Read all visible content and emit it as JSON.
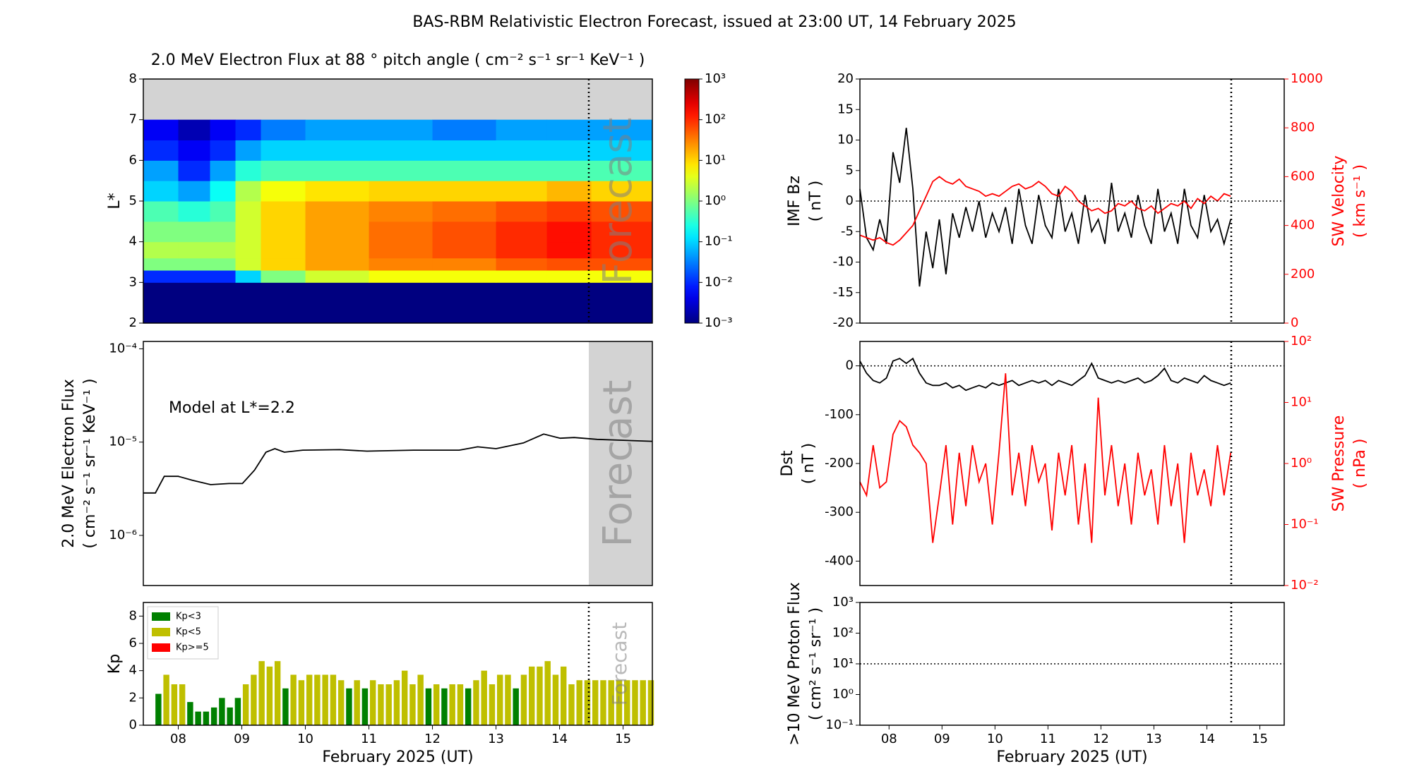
{
  "title": "BAS-RBM Relativistic Electron Forecast, issued at 23:00 UT, 14 February 2025",
  "chart_data": [
    {
      "type": "heatmap",
      "title": "2.0 MeV Electron Flux at 88 ° pitch angle ( cm⁻² s⁻¹ sr⁻¹ KeV⁻¹ )",
      "y_label": [
        "L*"
      ],
      "x_edges": [
        7.95,
        8.5,
        9.0,
        9.4,
        9.8,
        10.5,
        11.5,
        12.5,
        13.5,
        14.3,
        15.0,
        15.96
      ],
      "y_edges": [
        2,
        3,
        3.3,
        3.6,
        4,
        4.5,
        5,
        5.5,
        6,
        6.5,
        7
      ],
      "values": [
        [
          0.001,
          0.001,
          0.001,
          0.001,
          0.001,
          0.001,
          0.001,
          0.001,
          0.001,
          0.001,
          0.001
        ],
        [
          0.01,
          0.01,
          0.01,
          0.1,
          1,
          3,
          5,
          5,
          5,
          5,
          5
        ],
        [
          1,
          1,
          1,
          3,
          10,
          20,
          30,
          30,
          50,
          60,
          60
        ],
        [
          2,
          2,
          2,
          3,
          10,
          20,
          40,
          60,
          100,
          150,
          100
        ],
        [
          1,
          1,
          1,
          3,
          10,
          20,
          40,
          60,
          100,
          150,
          100
        ],
        [
          0.5,
          0.3,
          0.5,
          3,
          10,
          20,
          30,
          40,
          60,
          80,
          60
        ],
        [
          0.1,
          0.05,
          0.2,
          2,
          5,
          8,
          10,
          10,
          10,
          15,
          10
        ],
        [
          0.05,
          0.01,
          0.05,
          0.3,
          0.5,
          0.5,
          0.5,
          0.5,
          0.5,
          0.5,
          0.5
        ],
        [
          0.01,
          0.005,
          0.01,
          0.05,
          0.1,
          0.1,
          0.1,
          0.1,
          0.1,
          0.1,
          0.1
        ],
        [
          0.005,
          0.002,
          0.005,
          0.01,
          0.03,
          0.05,
          0.05,
          0.03,
          0.05,
          0.05,
          0.05
        ]
      ],
      "xlim": [
        7.95,
        15.96
      ],
      "ylim": [
        2,
        8
      ],
      "yticks": [
        2,
        3,
        4,
        5,
        6,
        7,
        8
      ],
      "colormap": "jet",
      "zlim": [
        0.001,
        1000
      ],
      "zticks": [
        {
          "value": 0.001,
          "label": "10⁻³"
        },
        {
          "value": 0.01,
          "label": "10⁻²"
        },
        {
          "value": 0.1,
          "label": "10⁻¹"
        },
        {
          "value": 1,
          "label": "10⁰"
        },
        {
          "value": 10,
          "label": "10¹"
        },
        {
          "value": 100,
          "label": "10²"
        },
        {
          "value": 1000,
          "label": "10³"
        }
      ],
      "no_data_color": "#d3d3d3",
      "forecast_time": 14.96,
      "forecast_marker": "line",
      "forecast_label": "Forecast"
    },
    {
      "type": "line",
      "y_label": [
        "2.0 MeV Electron Flux",
        "( cm⁻² s⁻¹ sr⁻¹ KeV⁻¹ )"
      ],
      "annotation": "Model at L*=2.2",
      "x": [
        7.95,
        8.14,
        8.28,
        8.5,
        8.72,
        9.01,
        9.3,
        9.51,
        9.7,
        9.88,
        10.02,
        10.17,
        10.46,
        11.04,
        11.47,
        12.2,
        12.92,
        13.21,
        13.5,
        13.93,
        14.25,
        14.51,
        14.73,
        15.09,
        15.96
      ],
      "values": [
        2.85e-06,
        2.85e-06,
        4.3e-06,
        4.3e-06,
        3.9e-06,
        3.5e-06,
        3.6e-06,
        3.6e-06,
        5e-06,
        7.8e-06,
        8.5e-06,
        7.8e-06,
        8.2e-06,
        8.3e-06,
        8e-06,
        8.2e-06,
        8.2e-06,
        8.9e-06,
        8.5e-06,
        9.8e-06,
        1.22e-05,
        1.1e-05,
        1.12e-05,
        1.07e-05,
        1.02e-05
      ],
      "color": "#000000",
      "xlim": [
        7.95,
        15.96
      ],
      "ylim": [
        2.9e-07,
        0.00012
      ],
      "ylog": true,
      "yticks": [
        {
          "value": 1e-06,
          "label": "10⁻⁶"
        },
        {
          "value": 1e-05,
          "label": "10⁻⁵"
        },
        {
          "value": 0.0001,
          "label": "10⁻⁴"
        }
      ],
      "forecast_time": 14.96,
      "forecast_marker": "shade",
      "forecast_label": "Forecast"
    },
    {
      "type": "bar",
      "y_label": [
        "Kp"
      ],
      "x_label": "February 2025 (UT)",
      "legend": "upper left",
      "x": [
        8.1875,
        8.3125,
        8.4375,
        8.5625,
        8.6875,
        8.8125,
        8.9375,
        9.0625,
        9.1875,
        9.3125,
        9.4375,
        9.5625,
        9.6875,
        9.8125,
        9.9375,
        10.0625,
        10.1875,
        10.3125,
        10.4375,
        10.5625,
        10.6875,
        10.8125,
        10.9375,
        11.0625,
        11.1875,
        11.3125,
        11.4375,
        11.5625,
        11.6875,
        11.8125,
        11.9375,
        12.0625,
        12.1875,
        12.3125,
        12.4375,
        12.5625,
        12.6875,
        12.8125,
        12.9375,
        13.0625,
        13.1875,
        13.3125,
        13.4375,
        13.5625,
        13.6875,
        13.8125,
        13.9375,
        14.0625,
        14.1875,
        14.3125,
        14.4375,
        14.5625,
        14.6875,
        14.8125,
        14.9375,
        15.0625,
        15.1875,
        15.3125,
        15.4375,
        15.5625,
        15.6875,
        15.8125,
        15.9375
      ],
      "series": [
        {
          "name": "Kp<3",
          "color": "#008000",
          "values": [
            2.3,
            null,
            null,
            null,
            1.7,
            1.0,
            1.0,
            1.3,
            2.0,
            1.3,
            2.0,
            null,
            null,
            null,
            null,
            null,
            2.7,
            null,
            null,
            null,
            null,
            null,
            null,
            null,
            2.7,
            null,
            2.7,
            null,
            null,
            null,
            null,
            null,
            null,
            null,
            2.7,
            null,
            2.7,
            null,
            null,
            2.7,
            null,
            null,
            null,
            null,
            null,
            2.7,
            null,
            null,
            null,
            null,
            null,
            null,
            null,
            null,
            null,
            null,
            null,
            null,
            null,
            null,
            null,
            null,
            null
          ]
        },
        {
          "name": "Kp<5",
          "color": "#bfbf00",
          "values": [
            null,
            3.7,
            3.0,
            3.0,
            null,
            null,
            null,
            null,
            null,
            null,
            null,
            3.0,
            3.7,
            4.7,
            4.3,
            4.7,
            null,
            3.7,
            3.3,
            3.7,
            3.7,
            3.7,
            3.7,
            3.3,
            null,
            3.3,
            null,
            3.3,
            3.0,
            3.0,
            3.3,
            4.0,
            3.0,
            3.7,
            null,
            3.0,
            null,
            3.0,
            3.0,
            null,
            3.3,
            4.0,
            3.0,
            3.7,
            3.7,
            null,
            3.7,
            4.3,
            4.3,
            4.7,
            3.7,
            4.3,
            3.0,
            3.3,
            3.3,
            3.3,
            3.3,
            3.3,
            3.3,
            3.3,
            3.3,
            3.3,
            3.3
          ]
        },
        {
          "name": "Kp>=5",
          "color": "#ff0000",
          "values": [
            null,
            null,
            null,
            null,
            null,
            null,
            null,
            null,
            null,
            null,
            null,
            null,
            null,
            null,
            null,
            null,
            null,
            null,
            null,
            null,
            null,
            null,
            null,
            null,
            null,
            null,
            null,
            null,
            null,
            null,
            null,
            null,
            null,
            null,
            null,
            null,
            null,
            null,
            null,
            null,
            null,
            null,
            null,
            null,
            null,
            null,
            null,
            null,
            null,
            null,
            null,
            null,
            null,
            null,
            null,
            null,
            null,
            null,
            null,
            null,
            null,
            null,
            null
          ]
        }
      ],
      "xlim": [
        7.95,
        15.96
      ],
      "ylim": [
        0,
        9
      ],
      "yticks": [
        0,
        2,
        4,
        6,
        8
      ],
      "xticks": [
        {
          "value": 8.5,
          "label": "08"
        },
        {
          "value": 9.5,
          "label": "09"
        },
        {
          "value": 10.5,
          "label": "10"
        },
        {
          "value": 11.5,
          "label": "11"
        },
        {
          "value": 12.5,
          "label": "12"
        },
        {
          "value": 13.5,
          "label": "13"
        },
        {
          "value": 14.5,
          "label": "14"
        },
        {
          "value": 15.5,
          "label": "15"
        }
      ],
      "forecast_time": 14.96,
      "forecast_marker": "line",
      "forecast_label": "Forecast"
    },
    {
      "type": "line",
      "y_label": [
        "IMF Bz",
        "( nT )"
      ],
      "y2_label": [
        "SW Velocity",
        "( km s⁻¹ )"
      ],
      "x": [
        7.95,
        8.075,
        8.2,
        8.325,
        8.45,
        8.575,
        8.7,
        8.825,
        8.95,
        9.075,
        9.2,
        9.325,
        9.45,
        9.575,
        9.7,
        9.825,
        9.95,
        10.075,
        10.2,
        10.325,
        10.45,
        10.575,
        10.7,
        10.825,
        10.95,
        11.075,
        11.2,
        11.325,
        11.45,
        11.575,
        11.7,
        11.825,
        11.95,
        12.075,
        12.2,
        12.325,
        12.45,
        12.575,
        12.7,
        12.825,
        12.95,
        13.075,
        13.2,
        13.325,
        13.45,
        13.575,
        13.7,
        13.825,
        13.95,
        14.075,
        14.2,
        14.325,
        14.45,
        14.575,
        14.7,
        14.825,
        14.95
      ],
      "series": [
        {
          "color": "#000000",
          "values": [
            2,
            -6,
            -8,
            -3,
            -7,
            8,
            3,
            12,
            2,
            -14,
            -5,
            -11,
            -3,
            -12,
            -2,
            -6,
            -1,
            -5,
            0,
            -6,
            -2,
            -5,
            -1,
            -7,
            2,
            -4,
            -7,
            1,
            -4,
            -6,
            2,
            -5,
            -2,
            -7,
            1,
            -5,
            -3,
            -7,
            3,
            -5,
            -2,
            -6,
            1,
            -4,
            -7,
            2,
            -5,
            -2,
            -7,
            2,
            -4,
            -6,
            1,
            -5,
            -3,
            -7,
            -3
          ]
        },
        {
          "color": "#ff0000",
          "axis": "y2",
          "values": [
            360,
            350,
            340,
            350,
            330,
            320,
            340,
            370,
            400,
            460,
            520,
            580,
            600,
            580,
            570,
            590,
            560,
            550,
            540,
            520,
            530,
            520,
            540,
            560,
            570,
            550,
            560,
            580,
            560,
            530,
            520,
            560,
            540,
            500,
            480,
            460,
            470,
            450,
            460,
            490,
            480,
            500,
            470,
            460,
            480,
            450,
            470,
            490,
            480,
            500,
            470,
            510,
            490,
            520,
            500,
            530,
            520
          ]
        }
      ],
      "xlim": [
        7.95,
        15.96
      ],
      "ylim": [
        -20,
        20
      ],
      "yticks": [
        -20,
        -15,
        -10,
        -5,
        0,
        5,
        10,
        15,
        20
      ],
      "y2lim": [
        0,
        1000
      ],
      "y2ticks": [
        0,
        200,
        400,
        600,
        800,
        1000
      ],
      "reference_line": 0,
      "forecast_time": 14.96,
      "forecast_marker": "line"
    },
    {
      "type": "line",
      "y_label": [
        "Dst",
        "( nT )"
      ],
      "y2_label": [
        "SW Pressure",
        "( nPa )"
      ],
      "x": [
        7.95,
        8.075,
        8.2,
        8.325,
        8.45,
        8.575,
        8.7,
        8.825,
        8.95,
        9.075,
        9.2,
        9.325,
        9.45,
        9.575,
        9.7,
        9.825,
        9.95,
        10.075,
        10.2,
        10.325,
        10.45,
        10.575,
        10.7,
        10.825,
        10.95,
        11.075,
        11.2,
        11.325,
        11.45,
        11.575,
        11.7,
        11.825,
        11.95,
        12.075,
        12.2,
        12.325,
        12.45,
        12.575,
        12.7,
        12.825,
        12.95,
        13.075,
        13.2,
        13.325,
        13.45,
        13.575,
        13.7,
        13.825,
        13.95,
        14.075,
        14.2,
        14.325,
        14.45,
        14.575,
        14.7,
        14.825,
        14.95
      ],
      "series": [
        {
          "color": "#000000",
          "values": [
            10,
            -15,
            -30,
            -35,
            -25,
            10,
            15,
            5,
            15,
            -15,
            -35,
            -40,
            -40,
            -35,
            -45,
            -40,
            -50,
            -45,
            -40,
            -45,
            -35,
            -40,
            -35,
            -30,
            -40,
            -35,
            -30,
            -35,
            -30,
            -40,
            -30,
            -35,
            -40,
            -30,
            -20,
            5,
            -25,
            -30,
            -35,
            -30,
            -35,
            -30,
            -25,
            -35,
            -30,
            -20,
            -5,
            -30,
            -35,
            -25,
            -30,
            -35,
            -20,
            -30,
            -35,
            -40,
            -35
          ]
        },
        {
          "color": "#ff0000",
          "axis": "y2",
          "values": [
            0.5,
            0.3,
            2,
            0.4,
            0.5,
            3,
            5,
            4,
            2,
            1.5,
            1,
            0.05,
            0.3,
            2,
            0.1,
            1.5,
            0.2,
            2,
            0.5,
            1,
            0.1,
            1.5,
            30,
            0.3,
            1.5,
            0.2,
            2,
            0.5,
            1,
            0.08,
            1.5,
            0.3,
            2,
            0.1,
            1,
            0.05,
            12,
            0.3,
            2,
            0.2,
            1,
            0.1,
            1.5,
            0.3,
            0.8,
            0.1,
            2,
            0.2,
            1,
            0.05,
            1.5,
            0.3,
            0.8,
            0.2,
            2,
            0.3,
            1.5
          ]
        }
      ],
      "xlim": [
        7.95,
        15.96
      ],
      "ylim": [
        -450,
        50
      ],
      "yticks": [
        -400,
        -300,
        -200,
        -100,
        0
      ],
      "y2lim": [
        0.01,
        100
      ],
      "y2log": true,
      "y2ticks": [
        {
          "value": 0.01,
          "label": "10⁻²"
        },
        {
          "value": 0.1,
          "label": "10⁻¹"
        },
        {
          "value": 1,
          "label": "10⁰"
        },
        {
          "value": 10,
          "label": "10¹"
        },
        {
          "value": 100,
          "label": "10²"
        }
      ],
      "reference_line": 0,
      "forecast_time": 14.96,
      "forecast_marker": "line"
    },
    {
      "type": "line",
      "y_label": [
        ">10 MeV Proton Flux",
        "( cm² s⁻¹ sr⁻¹ )"
      ],
      "x_label": "February 2025 (UT)",
      "xlim": [
        7.95,
        15.96
      ],
      "ylim": [
        0.1,
        1000
      ],
      "ylog": true,
      "yticks": [
        {
          "value": 0.1,
          "label": "10⁻¹"
        },
        {
          "value": 1,
          "label": "10⁰"
        },
        {
          "value": 10,
          "label": "10¹"
        },
        {
          "value": 100,
          "label": "10²"
        },
        {
          "value": 1000,
          "label": "10³"
        }
      ],
      "xticks": [
        {
          "value": 8.5,
          "label": "08"
        },
        {
          "value": 9.5,
          "label": "09"
        },
        {
          "value": 10.5,
          "label": "10"
        },
        {
          "value": 11.5,
          "label": "11"
        },
        {
          "value": 12.5,
          "label": "12"
        },
        {
          "value": 13.5,
          "label": "13"
        },
        {
          "value": 14.5,
          "label": "14"
        },
        {
          "value": 15.5,
          "label": "15"
        }
      ],
      "reference_line": 10,
      "forecast_time": 14.96,
      "forecast_marker": "line"
    }
  ]
}
